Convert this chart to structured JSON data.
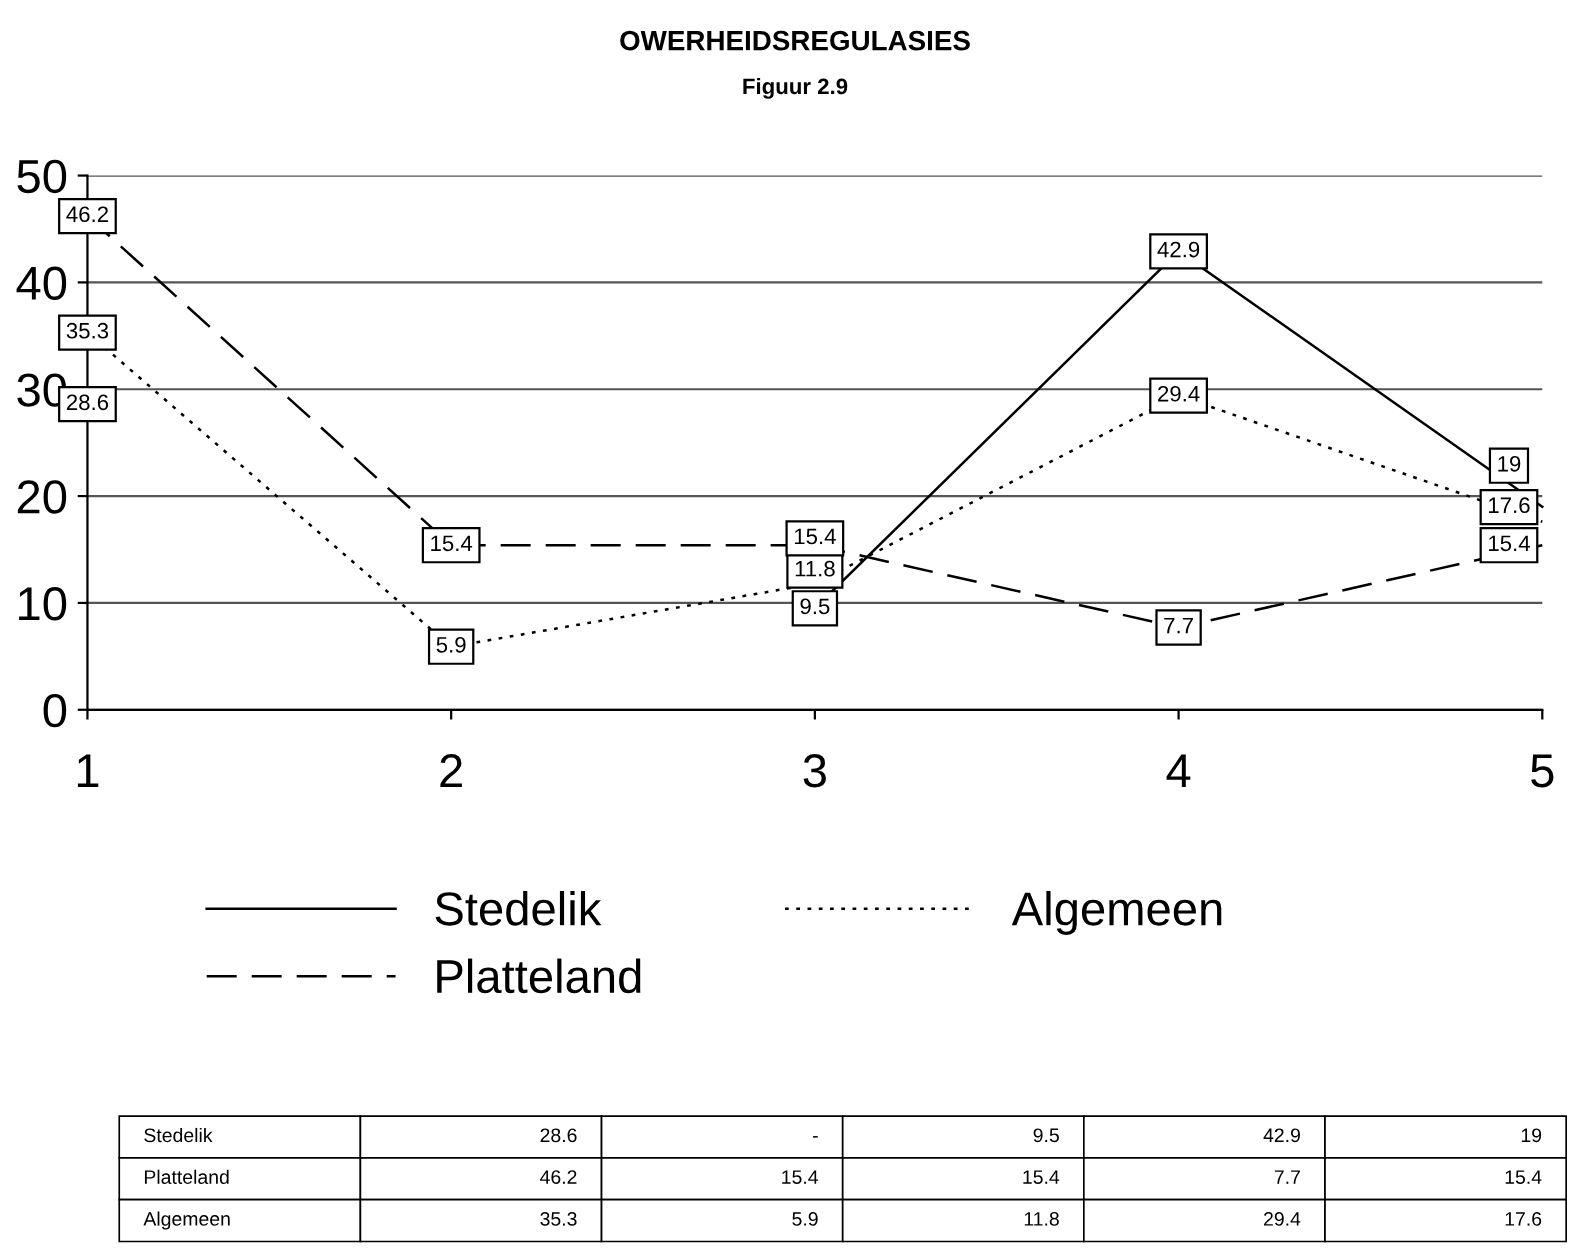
{
  "chart_data": {
    "type": "line",
    "title": "OWERHEIDSREGULASIES",
    "subtitle": "Figuur 2.9",
    "x": [
      1,
      2,
      3,
      4,
      5
    ],
    "xlim": [
      1,
      5
    ],
    "xticks": [
      1,
      2,
      3,
      4,
      5
    ],
    "ylim": [
      0,
      50
    ],
    "yticks": [
      0,
      10,
      20,
      30,
      40,
      50
    ],
    "grid": "y",
    "legend": "bottom",
    "series": [
      {
        "name": "Stedelik",
        "color": "#000000",
        "line_style": "solid",
        "values": [
          28.6,
          null,
          9.5,
          42.9,
          19
        ],
        "value_labels": [
          "28.6",
          "-",
          "9.5",
          "42.9",
          "19"
        ]
      },
      {
        "name": "Platteland",
        "color": "#000000",
        "line_style": "dashed",
        "values": [
          46.2,
          15.4,
          15.4,
          7.7,
          15.4
        ],
        "value_labels": [
          "46.2",
          "15.4",
          "15.4",
          "7.7",
          "15.4"
        ]
      },
      {
        "name": "Algemeen",
        "color": "#000000",
        "line_style": "dotted",
        "values": [
          35.3,
          5.9,
          11.8,
          29.4,
          17.6
        ],
        "value_labels": [
          "35.3",
          "5.9",
          "11.8",
          "29.4",
          "17.6"
        ]
      }
    ]
  }
}
